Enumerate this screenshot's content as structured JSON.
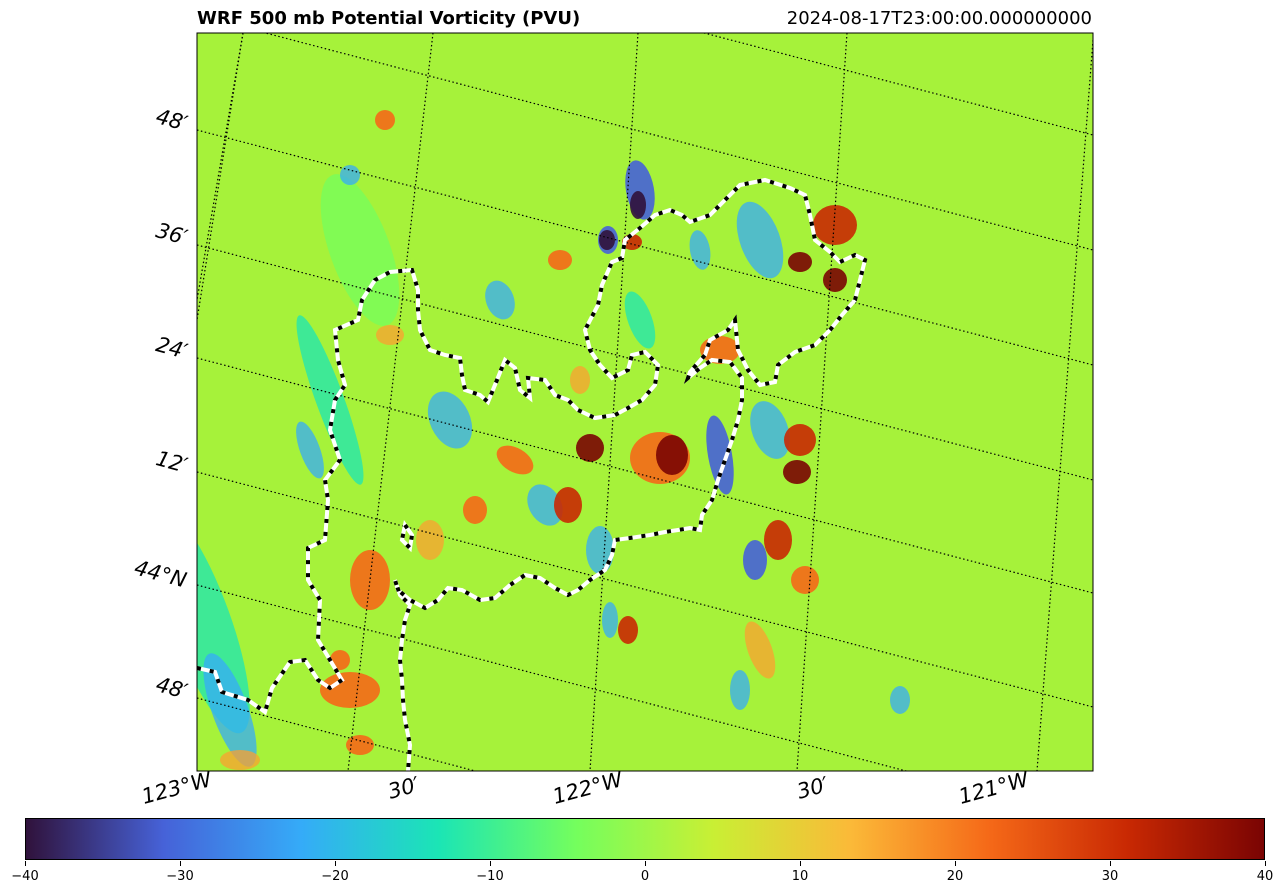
{
  "title": "WRF 500 mb Potential Vorticity (PVU)",
  "timestamp": "2024-08-17T23:00:00.000000000",
  "map": {
    "background_color": "#a6f23a",
    "lat_labels": [
      "48′",
      "36′",
      "24′",
      "12′",
      "44°N",
      "48′"
    ],
    "lon_labels": [
      "123°W",
      "30′",
      "122°W",
      "30′",
      "121°W"
    ]
  },
  "chart_data": {
    "type": "heatmap",
    "title": "WRF 500 mb Potential Vorticity (PVU)",
    "subtitle": "2024-08-17T23:00:00.000000000",
    "colormap": "turbo",
    "value_range": [
      -40,
      40
    ],
    "colorbar_ticks": [
      -40,
      -30,
      -20,
      -10,
      0,
      10,
      20,
      30,
      40
    ],
    "latitude_labels": [
      "48′",
      "36′",
      "24′",
      "12′",
      "44°N",
      "48′"
    ],
    "longitude_labels": [
      "123°W",
      "30′",
      "122°W",
      "30′",
      "121°W"
    ],
    "colorbar_colors": [
      "#30123b",
      "#4662d8",
      "#35abf8",
      "#1be5b5",
      "#74fe5d",
      "#c9ef34",
      "#fbb938",
      "#f56918",
      "#c92903",
      "#7a0403"
    ]
  }
}
